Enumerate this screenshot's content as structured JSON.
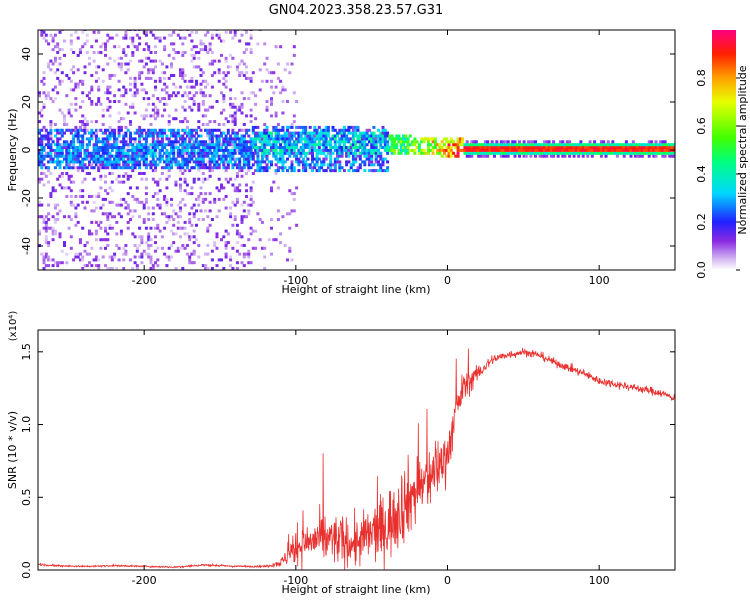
{
  "title": "GN04.2023.358.23.57.G31",
  "chart_data": [
    {
      "type": "heatmap",
      "xlabel": "Height of straight line (km)",
      "ylabel": "Frequency (Hz)",
      "xlim": [
        -270,
        150
      ],
      "ylim": [
        -50,
        50
      ],
      "xticks": [
        -200,
        -100,
        0,
        100
      ],
      "yticks": [
        -40,
        -20,
        0,
        20,
        40
      ],
      "colorbar": {
        "label": "Normalized spectral amplitude",
        "range": [
          0,
          1
        ],
        "ticks": [
          0.0,
          0.2,
          0.4,
          0.6,
          0.8
        ]
      },
      "regions": [
        {
          "x_range": [
            -270,
            -130
          ],
          "y_range": [
            -50,
            50
          ],
          "level": "sparse low (0.0-0.2)"
        },
        {
          "x_range": [
            -270,
            -40
          ],
          "y_range": [
            -8,
            8
          ],
          "level": "moderate (0.1-0.4)"
        },
        {
          "x_range": [
            -40,
            10
          ],
          "y_range": [
            -3,
            5
          ],
          "level": "medium (0.3-0.7)"
        },
        {
          "x_range": [
            10,
            150
          ],
          "y_range": [
            -1,
            1
          ],
          "level": "high (0.8-1.0)"
        }
      ],
      "grid": false
    },
    {
      "type": "line",
      "xlabel": "Height of straight line (km)",
      "ylabel": "SNR (10 * v/v)",
      "y_multiplier": "(x10⁴)",
      "xlim": [
        -270,
        150
      ],
      "ylim": [
        0,
        16500
      ],
      "xticks": [
        -200,
        -100,
        0,
        100
      ],
      "yticks": [
        0.0,
        0.5,
        1.0,
        1.5
      ],
      "series": [
        {
          "color": "#e8312f",
          "x": [
            -270,
            -260,
            -240,
            -220,
            -200,
            -180,
            -160,
            -140,
            -120,
            -110,
            -100,
            -90,
            -80,
            -70,
            -60,
            -50,
            -40,
            -30,
            -20,
            -10,
            0,
            5,
            10,
            20,
            30,
            40,
            50,
            60,
            70,
            80,
            90,
            100,
            110,
            120,
            130,
            140,
            150
          ],
          "values": [
            400,
            300,
            250,
            300,
            250,
            200,
            350,
            250,
            250,
            500,
            1500,
            2000,
            2200,
            2000,
            1800,
            2500,
            3000,
            4500,
            5500,
            6500,
            8000,
            10500,
            12500,
            13500,
            14500,
            14800,
            15000,
            14800,
            14300,
            13900,
            13500,
            13000,
            12800,
            12600,
            12400,
            12200,
            11800
          ],
          "noise": [
            100,
            100,
            80,
            80,
            80,
            80,
            100,
            80,
            100,
            400,
            1500,
            2000,
            2500,
            2500,
            2500,
            2800,
            3500,
            4000,
            3500,
            3000,
            2500,
            2000,
            1500,
            800,
            500,
            400,
            400,
            400,
            400,
            400,
            400,
            400,
            400,
            400,
            400,
            400,
            400
          ]
        }
      ],
      "grid": false
    }
  ]
}
